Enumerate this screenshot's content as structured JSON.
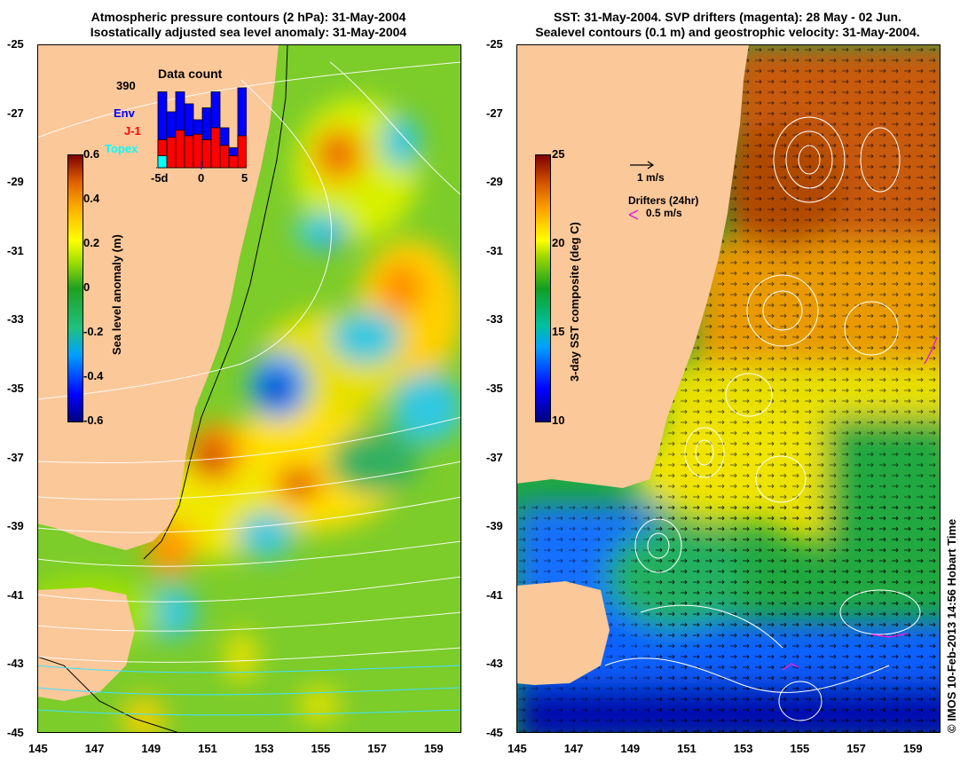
{
  "left_panel": {
    "title_line1": "Atmospheric pressure contours (2 hPa): 31-May-2004",
    "title_line2": "Isostatically adjusted sea level anomaly: 31-May-2004",
    "colorbar": {
      "title": "Sea level anomaly (m)",
      "ticks": [
        "0.6",
        "0.4",
        "0.2",
        "0",
        "-0.2",
        "-0.4",
        "-0.6"
      ]
    },
    "data_count": {
      "title": "Data count",
      "max_label": "390",
      "legend": [
        {
          "name": "Env",
          "color": "#0000ff"
        },
        {
          "name": "J-1",
          "color": "#ff0000"
        },
        {
          "name": "Topex",
          "color": "#00ffff"
        }
      ],
      "x_labels": [
        "-5d",
        "0",
        "5"
      ],
      "bars": [
        {
          "topex": 0.15,
          "j1": 0.35,
          "env": 0.95
        },
        {
          "topex": 0,
          "j1": 0.38,
          "env": 0.7
        },
        {
          "topex": 0,
          "j1": 0.47,
          "env": 0.95
        },
        {
          "topex": 0,
          "j1": 0.4,
          "env": 0.8
        },
        {
          "topex": 0,
          "j1": 0.42,
          "env": 0.6
        },
        {
          "topex": 0,
          "j1": 0.35,
          "env": 0.75
        },
        {
          "topex": 0,
          "j1": 0.5,
          "env": 0.95
        },
        {
          "topex": 0,
          "j1": 0.28,
          "env": 0.5
        },
        {
          "topex": 0,
          "j1": 0.15,
          "env": 0.25
        },
        {
          "topex": 0,
          "j1": 0.4,
          "env": 1.0
        }
      ]
    }
  },
  "right_panel": {
    "title_line1": "SST: 31-May-2004. SVP drifters (magenta): 28 May - 02 Jun.",
    "title_line2": "Sealevel contours (0.1 m) and geostrophic velocity: 31-May-2004.",
    "colorbar": {
      "title": "3-day SST composite (deg C)",
      "ticks": [
        "25",
        "20",
        "15",
        "10"
      ]
    },
    "velocity_legend": "1 m/s",
    "drifter_legend_title": "Drifters (24hr)",
    "drifter_legend_value": "0.5 m/s"
  },
  "axes": {
    "lat_labels": [
      "-25",
      "-27",
      "-29",
      "-31",
      "-33",
      "-35",
      "-37",
      "-39",
      "-41",
      "-43",
      "-45"
    ],
    "lon_labels": [
      "145",
      "147",
      "149",
      "151",
      "153",
      "155",
      "157",
      "159"
    ],
    "lat_range": [
      -45,
      -25
    ],
    "lon_range": [
      145,
      160
    ]
  },
  "copyright": "© IMOS 10-Feb-2013 14:56 Hobart Time",
  "colors": {
    "land": "#fbc89a",
    "sla_scale": [
      "#00007f",
      "#0000ff",
      "#00a0ff",
      "#00e0c0",
      "#00b050",
      "#40c020",
      "#a0e000",
      "#ffff00",
      "#ffc000",
      "#ff8000",
      "#cc4000",
      "#7f0000"
    ],
    "sst_scale": [
      "#00007f",
      "#0000ff",
      "#0080ff",
      "#00e0ff",
      "#00c080",
      "#00b000",
      "#80d000",
      "#e0e000",
      "#ffc000",
      "#ff9000",
      "#d05000",
      "#7f0000"
    ]
  }
}
